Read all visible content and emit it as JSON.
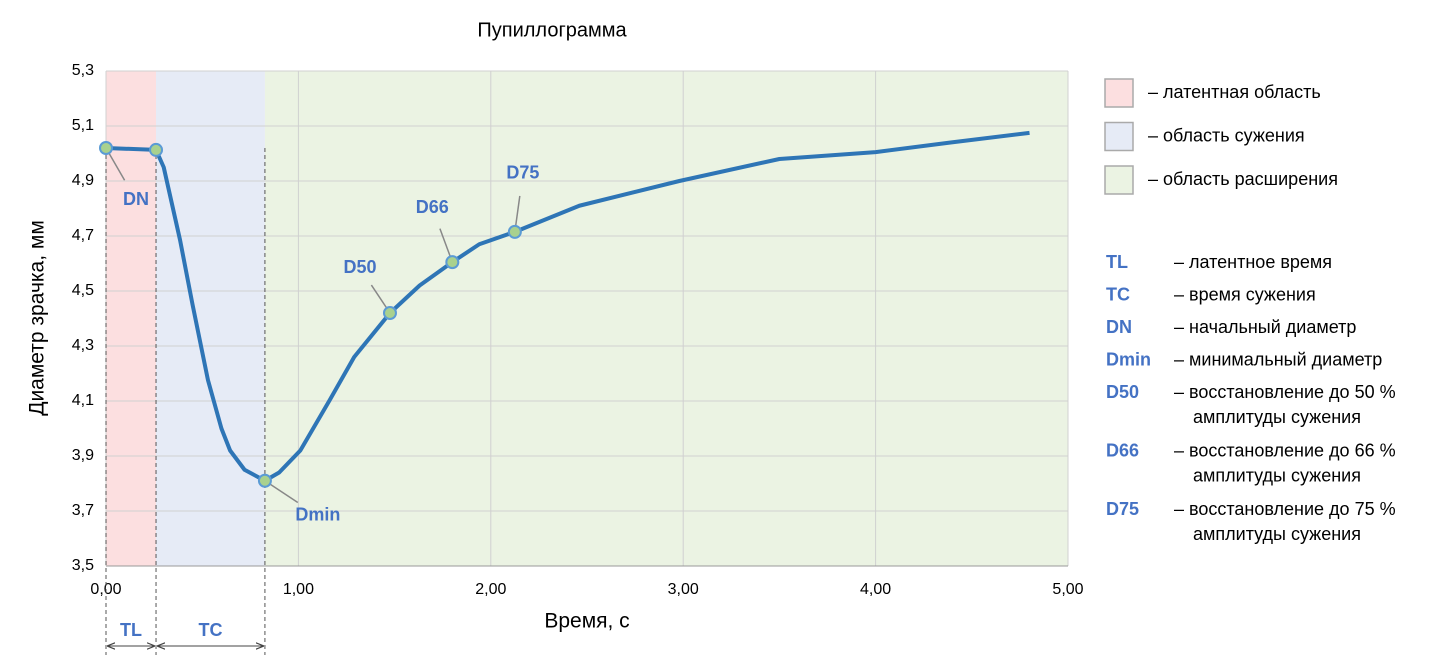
{
  "chart_data": {
    "type": "line",
    "title": "Пупиллограмма",
    "x_label": "Время, с",
    "y_label": "Диаметр зрачка, мм",
    "x": [
      0,
      0.26,
      0.3,
      0.385,
      0.45,
      0.53,
      0.6,
      0.645,
      0.72,
      0.826,
      0.9,
      1.01,
      1.16,
      1.29,
      1.476,
      1.63,
      1.8,
      1.94,
      2.125,
      2.46,
      2.98,
      3.5,
      4.0,
      4.39,
      4.8
    ],
    "series": [
      {
        "color": "#2e75b6",
        "values": [
          5.02,
          5.013,
          4.95,
          4.685,
          4.45,
          4.176,
          4.0,
          3.92,
          3.85,
          3.81,
          3.84,
          3.92,
          4.1,
          4.26,
          4.42,
          4.52,
          4.605,
          4.67,
          4.715,
          4.81,
          4.9,
          4.98,
          5.005,
          5.04,
          5.075
        ]
      }
    ],
    "xlim": [
      0,
      5
    ],
    "ylim": [
      3.5,
      5.3
    ],
    "xticks": [
      {
        "value": 0,
        "label": "0,00"
      },
      {
        "value": 1,
        "label": "1,00"
      },
      {
        "value": 2,
        "label": "2,00"
      },
      {
        "value": 3,
        "label": "3,00"
      },
      {
        "value": 4,
        "label": "4,00"
      },
      {
        "value": 5,
        "label": "5,00"
      }
    ],
    "yticks": [
      {
        "value": 3.5,
        "label": "3,5"
      },
      {
        "value": 3.7,
        "label": "3,7"
      },
      {
        "value": 3.9,
        "label": "3,9"
      },
      {
        "value": 4.1,
        "label": "4,1"
      },
      {
        "value": 4.3,
        "label": "4,3"
      },
      {
        "value": 4.5,
        "label": "4,5"
      },
      {
        "value": 4.7,
        "label": "4,7"
      },
      {
        "value": 4.9,
        "label": "4,9"
      },
      {
        "value": 5.1,
        "label": "5,1"
      },
      {
        "value": 5.3,
        "label": "5,3"
      }
    ],
    "grid": true,
    "regions": [
      {
        "label": "– латентная область",
        "color": "#fcdfe0",
        "start": 0,
        "end": 0.26
      },
      {
        "label": "– область сужения",
        "color": "#e6ebf6",
        "start": 0.26,
        "end": 0.826
      },
      {
        "label": "– область расширения",
        "color": "#ebf3e3",
        "start": 0.826,
        "end": 5
      }
    ],
    "points": [
      {
        "label": "DN",
        "x": 0,
        "y": 5.02
      },
      {
        "x": 0.26,
        "y": 5.013
      },
      {
        "label": "Dmin",
        "x": 0.826,
        "y": 3.81
      },
      {
        "label": "D50",
        "x": 1.476,
        "y": 4.42
      },
      {
        "label": "D66",
        "x": 1.8,
        "y": 4.605
      },
      {
        "label": "D75",
        "x": 2.125,
        "y": 4.715
      }
    ],
    "intervals": [
      {
        "label": "TL",
        "start": 0,
        "end": 0.26
      },
      {
        "label": "TC",
        "start": 0.26,
        "end": 0.826
      }
    ],
    "glossary": [
      {
        "term": "TL",
        "lines": [
          "– латентное время"
        ]
      },
      {
        "term": "TC",
        "lines": [
          "– время сужения"
        ]
      },
      {
        "term": "DN",
        "lines": [
          "– начальный диаметр"
        ]
      },
      {
        "term": "Dmin",
        "lines": [
          "– минимальный диаметр"
        ]
      },
      {
        "term": "D50",
        "lines": [
          "– восстановление до 50 %",
          "амплитуды сужения"
        ]
      },
      {
        "term": "D66",
        "lines": [
          "– восстановление до 66 %",
          "амплитуды сужения"
        ]
      },
      {
        "term": "D75",
        "lines": [
          "– восстановление до 75 %",
          "амплитуды сужения"
        ]
      }
    ]
  }
}
